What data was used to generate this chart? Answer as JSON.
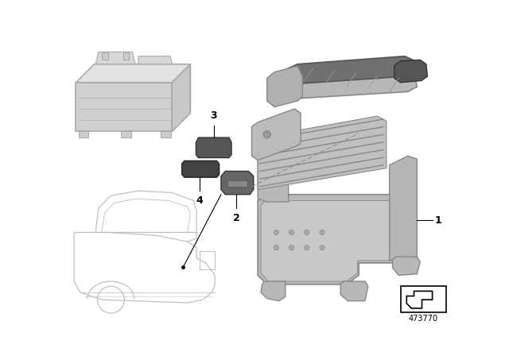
{
  "bg_color": "#ffffff",
  "part_number": "473770",
  "tray_fill": "#b8b8b8",
  "tray_edge": "#888888",
  "tray_dark": "#888888",
  "battery_fill": "#d0d0d0",
  "battery_edge": "#aaaaaa",
  "battery_top": "#e0e0e0",
  "battery_side": "#c0c0c0",
  "part_fill": "#606060",
  "part_edge": "#333333",
  "car_color": "#bbbbbb",
  "label_color": "#000000",
  "line_color": "#555555",
  "label_fontsize": 9,
  "partnumber_fontsize": 7
}
